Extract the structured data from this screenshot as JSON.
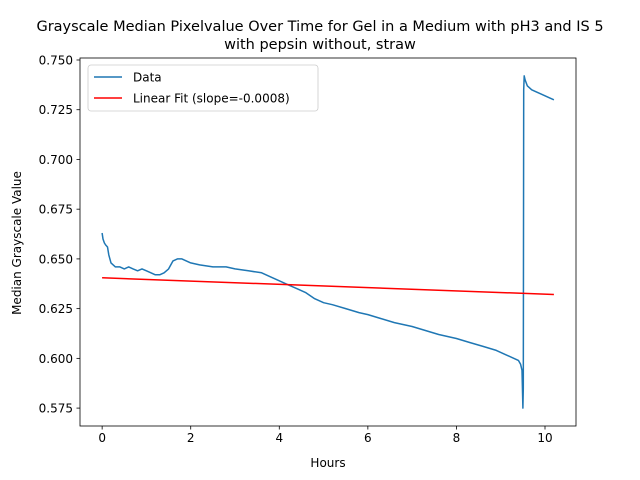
{
  "chart_data": {
    "type": "line",
    "title_lines": [
      "Grayscale Median Pixelvalue Over Time for Gel in a Medium with pH3 and IS 5",
      "with pepsin without, straw"
    ],
    "xlabel": "Hours",
    "ylabel": "Median Grayscale Value",
    "xlim": [
      -0.5,
      10.7
    ],
    "ylim": [
      0.566,
      0.751
    ],
    "xticks": [
      0,
      2,
      4,
      6,
      8,
      10
    ],
    "yticks": [
      0.575,
      0.6,
      0.625,
      0.65,
      0.675,
      0.7,
      0.725,
      0.75
    ],
    "ytick_labels": [
      "0.575",
      "0.600",
      "0.625",
      "0.650",
      "0.675",
      "0.700",
      "0.725",
      "0.750"
    ],
    "grid": false,
    "legend_position": "top-left",
    "series": [
      {
        "name": "Data",
        "color": "#1f77b4",
        "x": [
          0.0,
          0.02,
          0.05,
          0.08,
          0.12,
          0.15,
          0.2,
          0.25,
          0.3,
          0.4,
          0.5,
          0.6,
          0.7,
          0.8,
          0.9,
          1.0,
          1.1,
          1.2,
          1.3,
          1.4,
          1.5,
          1.6,
          1.7,
          1.8,
          1.9,
          2.0,
          2.2,
          2.5,
          2.8,
          3.0,
          3.3,
          3.6,
          3.8,
          4.0,
          4.2,
          4.4,
          4.6,
          4.8,
          5.0,
          5.2,
          5.5,
          5.8,
          6.0,
          6.3,
          6.6,
          7.0,
          7.3,
          7.6,
          8.0,
          8.3,
          8.6,
          8.9,
          9.1,
          9.3,
          9.4,
          9.45,
          9.48,
          9.5,
          9.51,
          9.52,
          9.53,
          9.55,
          9.6,
          9.7,
          9.8,
          9.9,
          10.0,
          10.1,
          10.2
        ],
        "values": [
          0.663,
          0.66,
          0.658,
          0.657,
          0.656,
          0.652,
          0.648,
          0.647,
          0.646,
          0.646,
          0.645,
          0.646,
          0.645,
          0.644,
          0.645,
          0.644,
          0.643,
          0.642,
          0.642,
          0.643,
          0.645,
          0.649,
          0.65,
          0.65,
          0.649,
          0.648,
          0.647,
          0.646,
          0.646,
          0.645,
          0.644,
          0.643,
          0.641,
          0.639,
          0.637,
          0.635,
          0.633,
          0.63,
          0.628,
          0.627,
          0.625,
          0.623,
          0.622,
          0.62,
          0.618,
          0.616,
          0.614,
          0.612,
          0.61,
          0.608,
          0.606,
          0.604,
          0.602,
          0.6,
          0.599,
          0.597,
          0.594,
          0.575,
          0.585,
          0.735,
          0.742,
          0.74,
          0.737,
          0.735,
          0.734,
          0.733,
          0.732,
          0.731,
          0.73
        ]
      },
      {
        "name": "Linear Fit (slope=-0.0008)",
        "color": "#ff0000",
        "x": [
          0.0,
          10.2
        ],
        "values": [
          0.6405,
          0.6321
        ]
      }
    ]
  }
}
